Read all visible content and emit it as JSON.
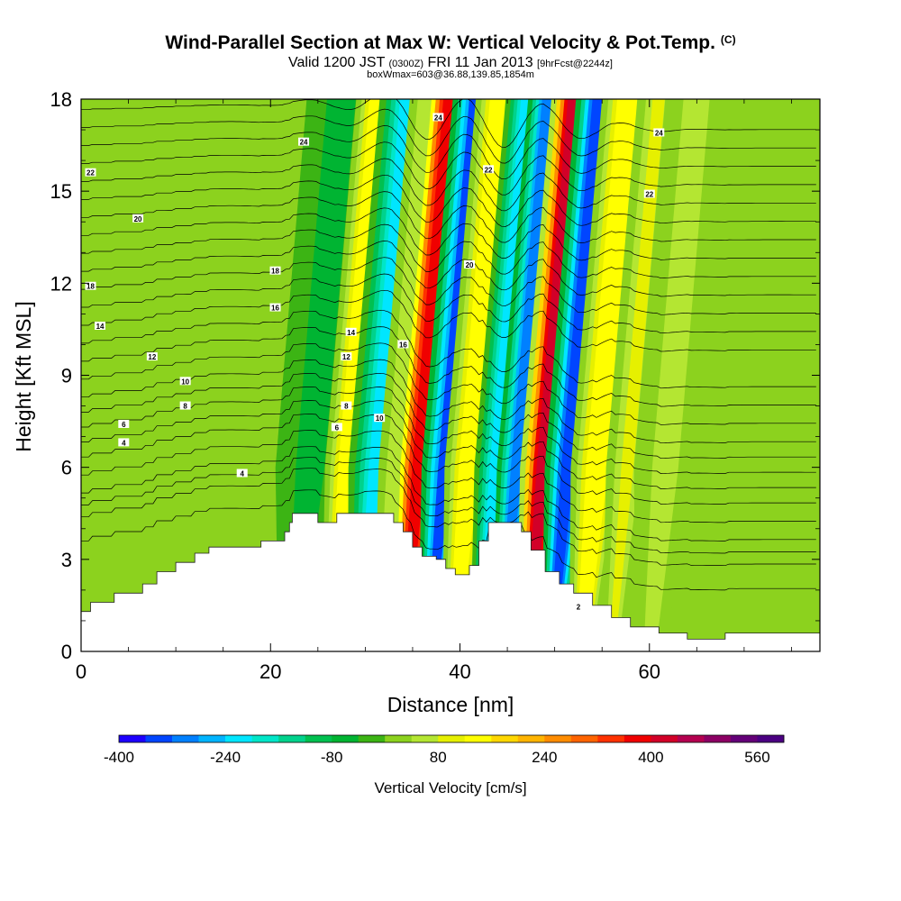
{
  "chart_data": {
    "type": "heatmap",
    "title": "Wind-Parallel Section at Max W: Vertical Velocity & Pot.Temp.",
    "title_mark": "(C)",
    "subtitle_main_a": "Valid 1200 JST",
    "subtitle_small_a": "(0300Z)",
    "subtitle_main_b": "FRI 11 Jan 2013",
    "subtitle_small_b": "[9hrFcst@2244z]",
    "subtitle2": "boxWmax=603@36.88,139.85,1854m",
    "xlabel": "Distance [nm]",
    "ylabel": "Height [Kft MSL]",
    "xlim": [
      0,
      78
    ],
    "ylim": [
      0,
      18
    ],
    "x_ticks": [
      "0",
      "20",
      "40",
      "60"
    ],
    "x_tick_values": [
      0,
      20,
      40,
      60
    ],
    "y_ticks": [
      "0",
      "3",
      "6",
      "9",
      "12",
      "15",
      "18"
    ],
    "y_tick_values": [
      0,
      3,
      6,
      9,
      12,
      15,
      18
    ],
    "colorbar": {
      "title": "Vertical Velocity [cm/s]",
      "labels": [
        "-400",
        "-240",
        "-80",
        "80",
        "240",
        "400",
        "560"
      ],
      "label_values": [
        -400,
        -240,
        -80,
        80,
        240,
        400,
        560
      ],
      "range": [
        -400,
        600
      ],
      "colors": [
        "#1e00ff",
        "#0045ff",
        "#0080ff",
        "#00b4ff",
        "#00e6ff",
        "#00e6c8",
        "#00d28c",
        "#00c050",
        "#00b432",
        "#3cb414",
        "#8cd21e",
        "#b4e632",
        "#e6f000",
        "#ffff00",
        "#ffd700",
        "#ffb400",
        "#ff8c00",
        "#ff6400",
        "#ff3200",
        "#f00000",
        "#d20028",
        "#b40050",
        "#8c0064",
        "#640078",
        "#4b0082"
      ]
    },
    "velocity_bands": [
      {
        "x": 25,
        "w": 2.0,
        "v": -60
      },
      {
        "x": 29,
        "w": 1.3,
        "v": 160
      },
      {
        "x": 32,
        "w": 1.6,
        "v": -230
      },
      {
        "x": 34.3,
        "w": 1.1,
        "v": 80
      },
      {
        "x": 36.5,
        "w": 1.4,
        "v": 440
      },
      {
        "x": 39.2,
        "w": 1.3,
        "v": -370
      },
      {
        "x": 41.8,
        "w": 1.4,
        "v": 160
      },
      {
        "x": 44.6,
        "w": 1.2,
        "v": -250
      },
      {
        "x": 46.8,
        "w": 1.1,
        "v": -350
      },
      {
        "x": 49.6,
        "w": 1.3,
        "v": 480
      },
      {
        "x": 52.2,
        "w": 1.3,
        "v": -390
      },
      {
        "x": 55.3,
        "w": 1.5,
        "v": 160
      },
      {
        "x": 58.5,
        "w": 1.2,
        "v": 90
      },
      {
        "x": 62.5,
        "w": 1.8,
        "v": 60
      }
    ],
    "terrain": [
      [
        0,
        1.3
      ],
      [
        1,
        1.6
      ],
      [
        3.5,
        1.9
      ],
      [
        6.5,
        2.2
      ],
      [
        8,
        2.6
      ],
      [
        10,
        2.9
      ],
      [
        12,
        3.2
      ],
      [
        13.5,
        3.4
      ],
      [
        19,
        3.6
      ],
      [
        21.5,
        3.9
      ],
      [
        22,
        4.2
      ],
      [
        22.3,
        4.5
      ],
      [
        25,
        4.2
      ],
      [
        27,
        4.5
      ],
      [
        33,
        4.2
      ],
      [
        34,
        3.9
      ],
      [
        35,
        3.4
      ],
      [
        36,
        3.1
      ],
      [
        37.5,
        3.0
      ],
      [
        38.5,
        2.7
      ],
      [
        39.5,
        2.5
      ],
      [
        41,
        2.8
      ],
      [
        42,
        3.6
      ],
      [
        43,
        4.2
      ],
      [
        46.5,
        3.9
      ],
      [
        47.5,
        3.3
      ],
      [
        49,
        2.6
      ],
      [
        50.5,
        2.2
      ],
      [
        52,
        1.9
      ],
      [
        54,
        1.5
      ],
      [
        56,
        1.1
      ],
      [
        58,
        0.8
      ],
      [
        61,
        0.6
      ],
      [
        64,
        0.4
      ],
      [
        67,
        0.4
      ],
      [
        68,
        0.6
      ],
      [
        78,
        0.6
      ]
    ],
    "theta_lines": [
      {
        "h": 3.2,
        "v": "2",
        "hx": 52.5,
        "hy": 1.45
      },
      {
        "h": 4.0,
        "v": "4",
        "hx": 17,
        "hy": 5.8
      },
      {
        "h": 4.4,
        "v": "4",
        "hx": 4.5,
        "hy": 6.8
      },
      {
        "h": 4.8,
        "v": "6",
        "hx": 4.5,
        "hy": 7.4
      },
      {
        "h": 5.4,
        "v": "6",
        "hx": 27,
        "hy": 7.3
      },
      {
        "h": 6.0,
        "v": "8",
        "hx": 11,
        "hy": 8.0
      },
      {
        "h": 6.5,
        "v": "8",
        "hx": 28,
        "hy": 8.0
      },
      {
        "h": 7.0,
        "v": "10",
        "hx": 11,
        "hy": 8.8
      },
      {
        "h": 7.5,
        "v": "10",
        "hx": 31.5,
        "hy": 7.6
      },
      {
        "h": 8.0,
        "v": "12",
        "hx": 7.5,
        "hy": 9.6
      },
      {
        "h": 8.6,
        "v": "12",
        "hx": 28,
        "hy": 9.6
      },
      {
        "h": 9.2,
        "v": "14",
        "hx": 2,
        "hy": 10.6
      },
      {
        "h": 9.8,
        "v": "14",
        "hx": 28.5,
        "hy": 10.4
      },
      {
        "h": 10.4,
        "v": "16",
        "hx": 20.5,
        "hy": 11.2
      },
      {
        "h": 11.0,
        "v": "16",
        "hx": 34,
        "hy": 10.0
      },
      {
        "h": 11.6,
        "v": "18",
        "hx": 20.5,
        "hy": 12.4
      },
      {
        "h": 12.2,
        "v": "18",
        "hx": 1,
        "hy": 11.9
      },
      {
        "h": 12.8,
        "v": "20",
        "hx": 6,
        "hy": 14.1
      },
      {
        "h": 13.4,
        "v": "20",
        "hx": 41,
        "hy": 12.6
      },
      {
        "h": 14.0,
        "v": "22",
        "hx": 1,
        "hy": 15.6
      },
      {
        "h": 14.6,
        "v": "22",
        "hx": 43,
        "hy": 15.7
      },
      {
        "h": 15.2,
        "v": "22",
        "hx": 60,
        "hy": 14.9
      },
      {
        "h": 15.8,
        "v": "24",
        "hx": 23.5,
        "hy": 16.6
      },
      {
        "h": 16.4,
        "v": "24",
        "hx": 37.7,
        "hy": 17.4
      },
      {
        "h": 17.0,
        "v": "24",
        "hx": 61,
        "hy": 16.9
      },
      {
        "h": 17.6,
        "v": "",
        "hx": 0,
        "hy": 0
      }
    ]
  }
}
